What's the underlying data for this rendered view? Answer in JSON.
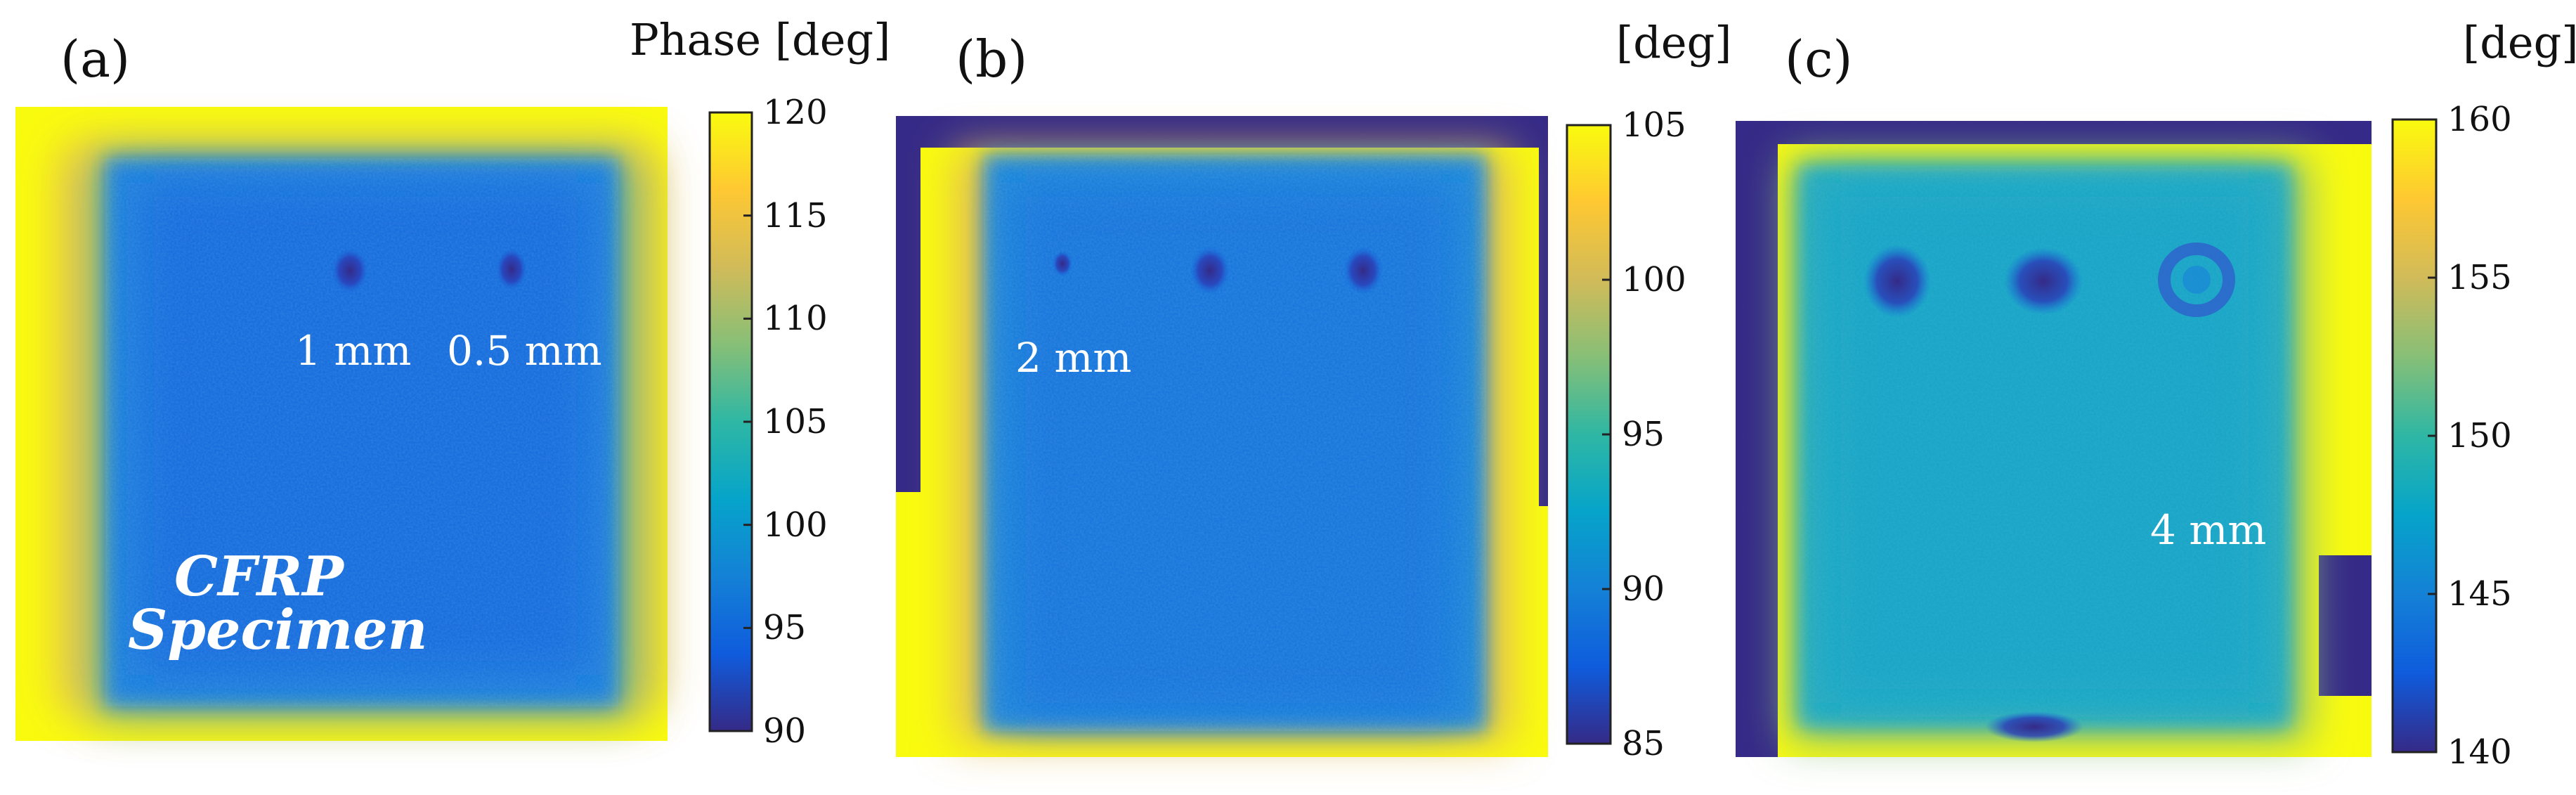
{
  "panels": [
    {
      "letter": "(a)",
      "colorbar": {
        "label": "Phase [deg]",
        "ticks": [
          "120",
          "115",
          "110",
          "105",
          "100",
          "95",
          "90"
        ]
      },
      "annotations": [
        "1 mm",
        "0.5 mm"
      ],
      "specimen_label": [
        "CFRP",
        "Specimen"
      ]
    },
    {
      "letter": "(b)",
      "colorbar": {
        "label": "[deg]",
        "ticks": [
          "105",
          "100",
          "95",
          "90",
          "85"
        ]
      },
      "annotations": [
        "2 mm"
      ]
    },
    {
      "letter": "(c)",
      "colorbar": {
        "label": "[deg]",
        "ticks": [
          "160",
          "155",
          "150",
          "145",
          "140"
        ]
      },
      "annotations": [
        "4 mm"
      ]
    }
  ],
  "colormap": [
    "#352a87",
    "#0f5cdd",
    "#1481d6",
    "#06a4ca",
    "#2eb7a4",
    "#87bf77",
    "#d1bb59",
    "#fec832",
    "#f9fb0e"
  ]
}
